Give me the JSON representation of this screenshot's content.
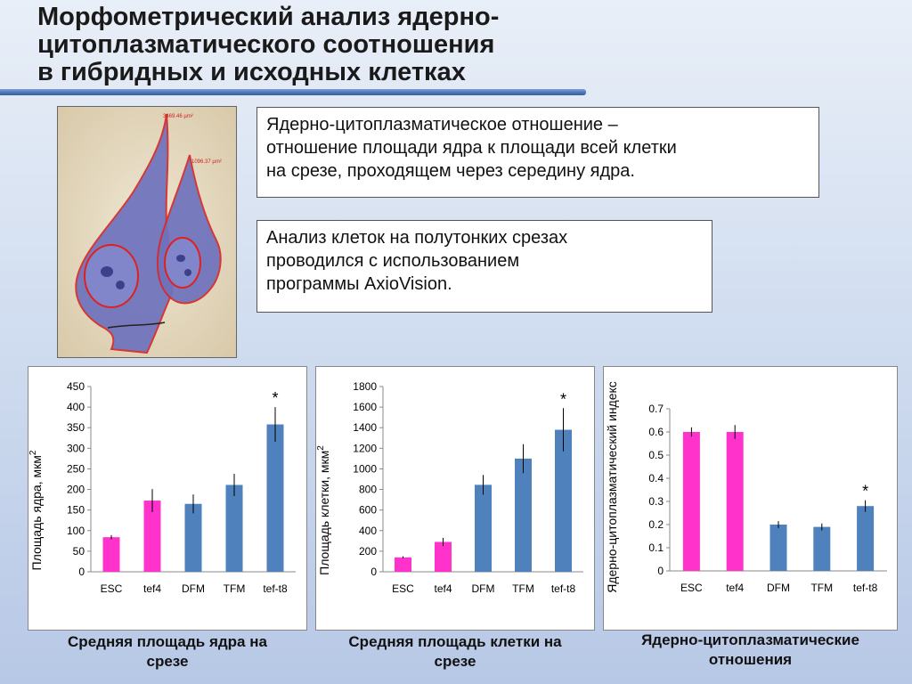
{
  "slide": {
    "title_lines": [
      "Морфометрический анализ ядерно-",
      "цитоплазматического соотношения",
      "в гибридных и исходных клетках"
    ],
    "definition_lines": [
      "Ядерно-цитоплазматическое отношение –",
      "отношение площади ядра к площади всей клетки",
      "на срезе, проходящем через середину ядра."
    ],
    "method_lines": [
      "Анализ клеток на полутонких срезах",
      "проводился с использованием",
      "программы AxioVision."
    ],
    "micrograph_labels": [
      "3469.46 µm²",
      "1096.37 µm²"
    ]
  },
  "colors": {
    "pink": "#ff33cc",
    "blue": "#4f81bd",
    "nucleus_outline": "#e02020",
    "cell_fill": "#6a6fb8"
  },
  "chart_data": [
    {
      "type": "bar",
      "categories": [
        "ESC",
        "tef4",
        "DFM",
        "TFM",
        "tef-t8"
      ],
      "values": [
        84,
        173,
        165,
        211,
        358
      ],
      "errors": [
        5,
        28,
        23,
        27,
        42
      ],
      "bar_colors": [
        "#ff33cc",
        "#ff33cc",
        "#4f81bd",
        "#4f81bd",
        "#4f81bd"
      ],
      "significance": [
        "",
        "",
        "",
        "",
        "*"
      ],
      "ylabel": "Площадь ядра, мкм",
      "ylabel_sup": "2",
      "ylim": [
        0,
        450
      ],
      "yticks": [
        0,
        50,
        100,
        150,
        200,
        250,
        300,
        350,
        400,
        450
      ],
      "caption_lines": [
        "Средняя площадь ядра на",
        "срезе"
      ]
    },
    {
      "type": "bar",
      "categories": [
        "ESC",
        "tef4",
        "DFM",
        "TFM",
        "tef-t8"
      ],
      "values": [
        140,
        290,
        845,
        1100,
        1380
      ],
      "errors": [
        10,
        40,
        95,
        140,
        210
      ],
      "bar_colors": [
        "#ff33cc",
        "#ff33cc",
        "#4f81bd",
        "#4f81bd",
        "#4f81bd"
      ],
      "significance": [
        "",
        "",
        "",
        "",
        "*"
      ],
      "ylabel": "Площадь клетки, мкм",
      "ylabel_sup": "2",
      "ylim": [
        0,
        1800
      ],
      "yticks": [
        0,
        200,
        400,
        600,
        800,
        1000,
        1200,
        1400,
        1600,
        1800
      ],
      "caption_lines": [
        "Средняя площадь клетки на",
        "срезе"
      ]
    },
    {
      "type": "bar",
      "categories": [
        "ESC",
        "tef4",
        "DFM",
        "TFM",
        "tef-t8"
      ],
      "values": [
        0.6,
        0.6,
        0.2,
        0.19,
        0.28
      ],
      "errors": [
        0.02,
        0.03,
        0.015,
        0.015,
        0.025
      ],
      "bar_colors": [
        "#ff33cc",
        "#ff33cc",
        "#4f81bd",
        "#4f81bd",
        "#4f81bd"
      ],
      "significance": [
        "",
        "",
        "",
        "",
        "*"
      ],
      "ylabel": "Ядерно-цитоплазматический индекс",
      "ylabel_sup": "",
      "ylim": [
        0,
        0.7
      ],
      "yticks": [
        0,
        0.1,
        0.2,
        0.3,
        0.4,
        0.5,
        0.6,
        0.7
      ],
      "caption_lines": [
        "Ядерно-цитоплазматические",
        "отношения"
      ]
    }
  ]
}
